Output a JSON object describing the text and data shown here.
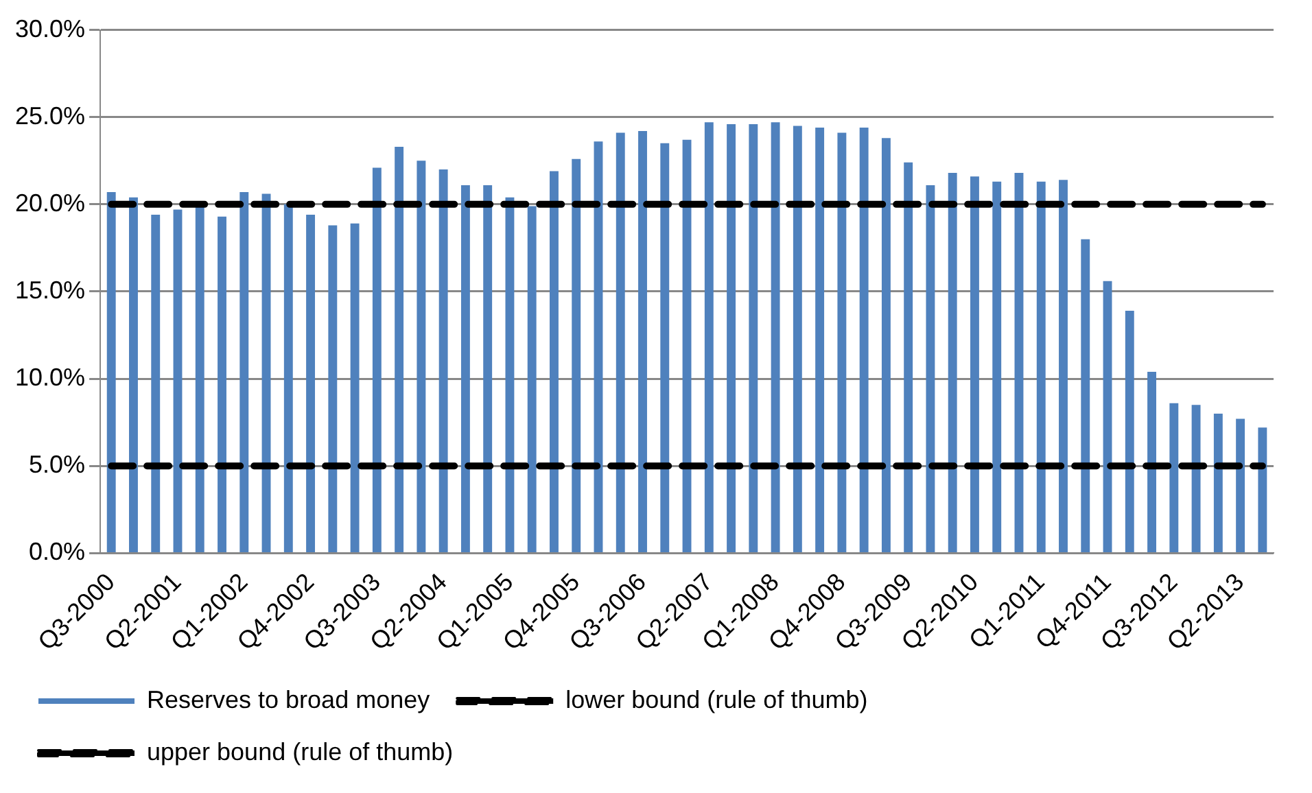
{
  "chart_data": {
    "type": "bar",
    "categories": [
      "Q3-2000",
      null,
      null,
      "Q2-2001",
      null,
      null,
      "Q1-2002",
      null,
      null,
      "Q4-2002",
      null,
      null,
      "Q3-2003",
      null,
      null,
      "Q2-2004",
      null,
      null,
      "Q1-2005",
      null,
      null,
      "Q4-2005",
      null,
      null,
      "Q3-2006",
      null,
      null,
      "Q2-2007",
      null,
      null,
      "Q1-2008",
      null,
      null,
      "Q4-2008",
      null,
      null,
      "Q3-2009",
      null,
      null,
      "Q2-2010",
      null,
      null,
      "Q1-2011",
      null,
      null,
      "Q4-2011",
      null,
      null,
      "Q3-2012",
      null,
      null,
      "Q2-2013",
      null
    ],
    "series": [
      {
        "name": "Reserves to broad money",
        "color": "#4f81bd",
        "values": [
          20.7,
          20.4,
          19.4,
          19.7,
          19.9,
          19.3,
          20.7,
          20.6,
          20.0,
          19.4,
          18.8,
          18.9,
          22.1,
          23.3,
          22.5,
          22.0,
          21.1,
          21.1,
          20.4,
          19.9,
          21.9,
          22.6,
          23.6,
          24.1,
          24.2,
          23.5,
          23.7,
          24.7,
          24.6,
          24.6,
          24.7,
          24.5,
          24.4,
          24.1,
          24.4,
          23.8,
          22.4,
          21.1,
          21.8,
          21.6,
          21.3,
          21.8,
          21.3,
          21.4,
          18.0,
          15.6,
          13.9,
          10.4,
          8.6,
          8.5,
          8.0,
          7.7,
          7.2
        ]
      },
      {
        "name": "lower bound (rule of thumb)",
        "type": "line",
        "color": "#000000",
        "line_style": "dashed",
        "values": [
          5,
          5,
          5,
          5,
          5,
          5,
          5,
          5,
          5,
          5,
          5,
          5,
          5,
          5,
          5,
          5,
          5,
          5,
          5,
          5,
          5,
          5,
          5,
          5,
          5,
          5,
          5,
          5,
          5,
          5,
          5,
          5,
          5,
          5,
          5,
          5,
          5,
          5,
          5,
          5,
          5,
          5,
          5,
          5,
          5,
          5,
          5,
          5,
          5,
          5,
          5,
          5,
          5
        ]
      },
      {
        "name": "upper bound (rule of thumb)",
        "type": "line",
        "color": "#000000",
        "line_style": "dashed",
        "values": [
          20,
          20,
          20,
          20,
          20,
          20,
          20,
          20,
          20,
          20,
          20,
          20,
          20,
          20,
          20,
          20,
          20,
          20,
          20,
          20,
          20,
          20,
          20,
          20,
          20,
          20,
          20,
          20,
          20,
          20,
          20,
          20,
          20,
          20,
          20,
          20,
          20,
          20,
          20,
          20,
          20,
          20,
          20,
          20,
          20,
          20,
          20,
          20,
          20,
          20,
          20,
          20,
          20
        ]
      }
    ],
    "ylim": [
      0,
      30
    ],
    "yticks": [
      {
        "value": 0,
        "label": "0.0%"
      },
      {
        "value": 5,
        "label": "5.0%"
      },
      {
        "value": 10,
        "label": "10.0%"
      },
      {
        "value": 15,
        "label": "15.0%"
      },
      {
        "value": 20,
        "label": "20.0%"
      },
      {
        "value": 25,
        "label": "25.0%"
      },
      {
        "value": 30,
        "label": "30.0%"
      }
    ],
    "grid": "y",
    "legend": "bottom",
    "marker": "none"
  }
}
